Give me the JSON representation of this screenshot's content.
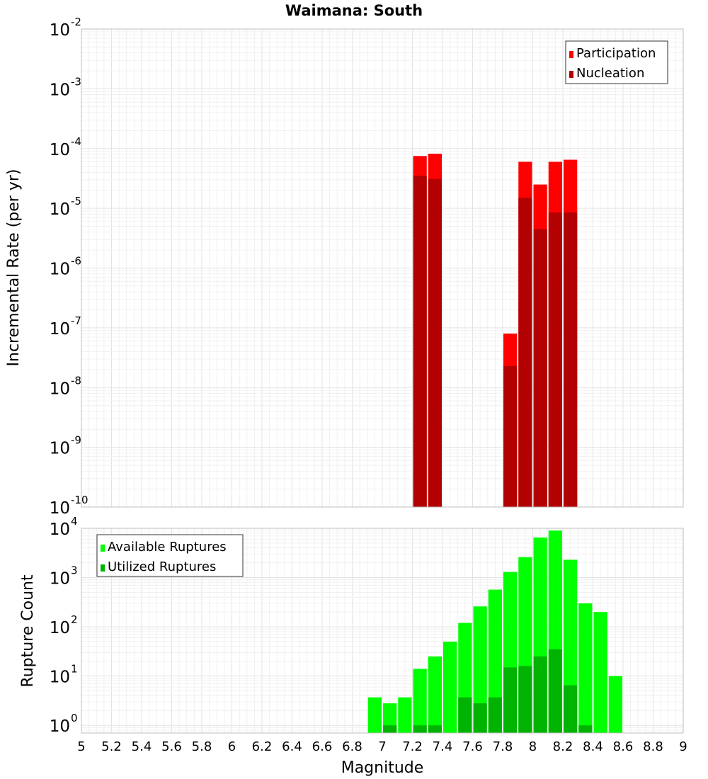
{
  "chart_data": [
    {
      "type": "bar",
      "title": "Waimana: South",
      "ylabel": "Incremental Rate (per yr)",
      "xlabel": "",
      "xlim": [
        5,
        9
      ],
      "ylim": [
        1e-10,
        0.01
      ],
      "yscale": "log",
      "bin_width": 0.1,
      "ytick_exponents": [
        "-2",
        "-3",
        "-4",
        "-5",
        "-6",
        "-7",
        "-8",
        "-9",
        "-10"
      ],
      "ytick_base": "10",
      "legend": {
        "position": "top-right",
        "entries": [
          "Participation",
          "Nucleation"
        ]
      },
      "colors": {
        "Participation": "#ff0000",
        "Nucleation": "#b30000"
      },
      "x": [
        7.25,
        7.35,
        7.85,
        7.95,
        8.05,
        8.15,
        8.25
      ],
      "series": [
        {
          "name": "Participation",
          "values": [
            7.5e-05,
            8.2e-05,
            8e-08,
            6e-05,
            2.5e-05,
            6e-05,
            6.5e-05
          ]
        },
        {
          "name": "Nucleation",
          "values": [
            3.5e-05,
            3.1e-05,
            2.3e-08,
            1.5e-05,
            4.5e-06,
            8.5e-06,
            8.5e-06
          ]
        }
      ]
    },
    {
      "type": "bar",
      "title": "",
      "ylabel": "Rupture Count",
      "xlabel": "Magnitude",
      "xlim": [
        5,
        9
      ],
      "ylim": [
        0.7,
        10000
      ],
      "yscale": "log",
      "bin_width": 0.1,
      "xticks": [
        "5",
        "5.2",
        "5.4",
        "5.6",
        "5.8",
        "6",
        "6.2",
        "6.4",
        "6.6",
        "6.8",
        "7",
        "7.2",
        "7.4",
        "7.6",
        "7.8",
        "8",
        "8.2",
        "8.4",
        "8.6",
        "8.8",
        "9"
      ],
      "ytick_exponents": [
        "4",
        "3",
        "2",
        "1",
        "0"
      ],
      "ytick_base": "10",
      "legend": {
        "position": "top-left",
        "entries": [
          "Available Ruptures",
          "Utilized Ruptures"
        ]
      },
      "colors": {
        "Available Ruptures": "#00ff00",
        "Utilized Ruptures": "#00b300"
      },
      "x": [
        6.95,
        7.05,
        7.15,
        7.25,
        7.35,
        7.45,
        7.55,
        7.65,
        7.75,
        7.85,
        7.95,
        8.05,
        8.15,
        8.25,
        8.35,
        8.45,
        8.55
      ],
      "series": [
        {
          "name": "Available Ruptures",
          "values": [
            3.7,
            2.8,
            3.7,
            14,
            25,
            50,
            120,
            260,
            570,
            1300,
            2600,
            6500,
            9000,
            2300,
            300,
            200,
            10
          ]
        },
        {
          "name": "Utilized Ruptures",
          "values": [
            0,
            1,
            0,
            1,
            1,
            0,
            3.7,
            2.8,
            3.7,
            15,
            16,
            25,
            35,
            6.5,
            1,
            0,
            0
          ]
        }
      ]
    }
  ]
}
